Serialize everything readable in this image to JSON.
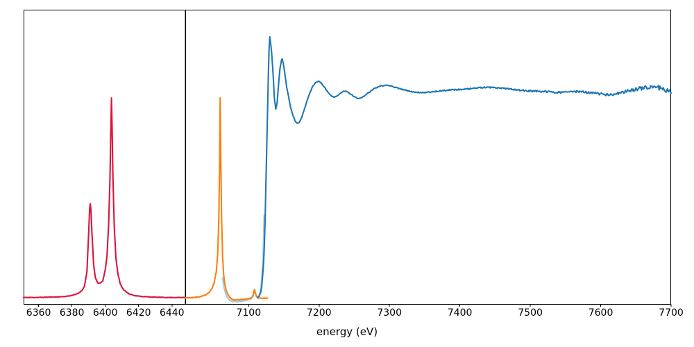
{
  "figure": {
    "background": "#ffffff",
    "border_color": "#000000"
  },
  "chart_data": {
    "type": "line",
    "title": "",
    "xlabel": "energy (eV)",
    "ylabel": "",
    "grid": false,
    "legend": "none",
    "ylim": [
      0,
      1
    ],
    "panels": [
      {
        "name": "left-emission-panel",
        "xlim": [
          6351,
          6448
        ],
        "xticks": [
          {
            "value": 6360,
            "label": "6360"
          },
          {
            "value": 6380,
            "label": "6380"
          },
          {
            "value": 6400,
            "label": "6400"
          },
          {
            "value": 6420,
            "label": "6420"
          },
          {
            "value": 6440,
            "label": "6440"
          }
        ]
      },
      {
        "name": "right-xafs-panel",
        "xlim": [
          7010,
          7700
        ],
        "xticks": [
          {
            "value": 7100,
            "label": "7100"
          },
          {
            "value": 7200,
            "label": "7200"
          },
          {
            "value": 7300,
            "label": "7300"
          },
          {
            "value": 7400,
            "label": "7400"
          },
          {
            "value": 7500,
            "label": "7500"
          },
          {
            "value": 7600,
            "label": "7600"
          },
          {
            "value": 7700,
            "label": "7700"
          }
        ]
      }
    ],
    "series": [
      {
        "name": "curve-crimson-kalpha",
        "panel": 0,
        "color": "#dc143c",
        "line_width": 2.1,
        "step": 0.4,
        "noise": 0.0008,
        "noise_seed": 11,
        "points": [
          [
            6351,
            0.022
          ],
          [
            6358,
            0.022
          ],
          [
            6365,
            0.023
          ],
          [
            6371,
            0.024
          ],
          [
            6375,
            0.025
          ],
          [
            6379,
            0.028
          ],
          [
            6382,
            0.032
          ],
          [
            6384,
            0.037
          ],
          [
            6386,
            0.046
          ],
          [
            6387.5,
            0.06
          ],
          [
            6389,
            0.11
          ],
          [
            6390,
            0.235
          ],
          [
            6390.6,
            0.32
          ],
          [
            6391,
            0.341
          ],
          [
            6391.4,
            0.32
          ],
          [
            6392,
            0.24
          ],
          [
            6393,
            0.135
          ],
          [
            6394,
            0.09
          ],
          [
            6395.5,
            0.071
          ],
          [
            6397,
            0.071
          ],
          [
            6398.5,
            0.078
          ],
          [
            6400,
            0.117
          ],
          [
            6401,
            0.16
          ],
          [
            6402,
            0.27
          ],
          [
            6402.8,
            0.42
          ],
          [
            6403.3,
            0.58
          ],
          [
            6403.7,
            0.7
          ],
          [
            6404.1,
            0.6
          ],
          [
            6404.6,
            0.43
          ],
          [
            6405.4,
            0.26
          ],
          [
            6406.4,
            0.155
          ],
          [
            6407.5,
            0.105
          ],
          [
            6409,
            0.068
          ],
          [
            6411,
            0.048
          ],
          [
            6414,
            0.035
          ],
          [
            6418,
            0.028
          ],
          [
            6423,
            0.025
          ],
          [
            6430,
            0.023
          ],
          [
            6438,
            0.022
          ],
          [
            6448,
            0.022
          ]
        ]
      },
      {
        "name": "curve-lightblue-underlay",
        "panel": 1,
        "color": "#a6cee3",
        "line_width": 2.2,
        "step": 0.6,
        "noise": 0.0018,
        "noise_seed": 23,
        "points": [
          [
            7063,
            0.09
          ],
          [
            7065,
            0.055
          ],
          [
            7067,
            0.037
          ],
          [
            7070,
            0.022
          ],
          [
            7073,
            0.013
          ],
          [
            7077,
            0.009
          ],
          [
            7082,
            0.007
          ],
          [
            7087,
            0.008
          ],
          [
            7092,
            0.011
          ],
          [
            7097,
            0.013
          ],
          [
            7101,
            0.016
          ],
          [
            7104,
            0.019
          ],
          [
            7106.5,
            0.03
          ],
          [
            7108,
            0.046
          ],
          [
            7109.5,
            0.037
          ],
          [
            7111,
            0.026
          ],
          [
            7113,
            0.022
          ],
          [
            7115,
            0.028
          ],
          [
            7117,
            0.048
          ],
          [
            7118.5,
            0.08
          ],
          [
            7120,
            0.14
          ],
          [
            7121,
            0.21
          ],
          [
            7122,
            0.3
          ]
        ]
      },
      {
        "name": "curve-orange-kbeta",
        "panel": 1,
        "color": "#ff7f0e",
        "line_width": 2.1,
        "step": 0.5,
        "noise": 0.0009,
        "noise_seed": 7,
        "points": [
          [
            7010,
            0.021
          ],
          [
            7018,
            0.021
          ],
          [
            7026,
            0.023
          ],
          [
            7033,
            0.026
          ],
          [
            7039,
            0.031
          ],
          [
            7044,
            0.039
          ],
          [
            7048,
            0.053
          ],
          [
            7051,
            0.072
          ],
          [
            7054,
            0.11
          ],
          [
            7056,
            0.17
          ],
          [
            7057.5,
            0.28
          ],
          [
            7058.6,
            0.45
          ],
          [
            7059.5,
            0.7
          ],
          [
            7060.4,
            0.5
          ],
          [
            7061.5,
            0.3
          ],
          [
            7063,
            0.16
          ],
          [
            7064.5,
            0.1
          ],
          [
            7066,
            0.068
          ],
          [
            7068,
            0.046
          ],
          [
            7070.5,
            0.032
          ],
          [
            7073,
            0.023
          ],
          [
            7076,
            0.017
          ],
          [
            7080,
            0.014
          ],
          [
            7085,
            0.014
          ],
          [
            7090,
            0.015
          ],
          [
            7095,
            0.016
          ],
          [
            7100,
            0.018
          ],
          [
            7103,
            0.02
          ],
          [
            7105.5,
            0.024
          ],
          [
            7107.5,
            0.044
          ],
          [
            7108.5,
            0.048
          ],
          [
            7110,
            0.034
          ],
          [
            7111.5,
            0.024
          ],
          [
            7113.5,
            0.02
          ],
          [
            7116,
            0.02
          ],
          [
            7119,
            0.019
          ],
          [
            7122,
            0.02
          ],
          [
            7125,
            0.019
          ],
          [
            7127,
            0.02
          ]
        ]
      },
      {
        "name": "curve-blue-xafs",
        "panel": 1,
        "color": "#1f77b4",
        "line_width": 2.1,
        "step": 1.0,
        "noise_profile": [
          [
            7113,
            0.0008
          ],
          [
            7200,
            0.0012
          ],
          [
            7350,
            0.0018
          ],
          [
            7550,
            0.0028
          ],
          [
            7620,
            0.0045
          ],
          [
            7700,
            0.0085
          ]
        ],
        "noise_seed": 37,
        "points": [
          [
            7113,
            0.022
          ],
          [
            7115,
            0.027
          ],
          [
            7117,
            0.038
          ],
          [
            7118.5,
            0.06
          ],
          [
            7120,
            0.1
          ],
          [
            7121.3,
            0.145
          ],
          [
            7122.3,
            0.2
          ],
          [
            7123.5,
            0.3
          ],
          [
            7125,
            0.46
          ],
          [
            7126.5,
            0.62
          ],
          [
            7128,
            0.78
          ],
          [
            7129,
            0.868
          ],
          [
            7130,
            0.908
          ],
          [
            7131,
            0.89
          ],
          [
            7132.5,
            0.858
          ],
          [
            7134.5,
            0.79
          ],
          [
            7136.5,
            0.7
          ],
          [
            7138.5,
            0.661
          ],
          [
            7140.5,
            0.685
          ],
          [
            7142.5,
            0.748
          ],
          [
            7144.5,
            0.8
          ],
          [
            7146.5,
            0.828
          ],
          [
            7147.5,
            0.833
          ],
          [
            7149,
            0.82
          ],
          [
            7151,
            0.79
          ],
          [
            7154,
            0.737
          ],
          [
            7157,
            0.7
          ],
          [
            7160,
            0.664
          ],
          [
            7163,
            0.64
          ],
          [
            7166,
            0.622
          ],
          [
            7169,
            0.613
          ],
          [
            7172,
            0.618
          ],
          [
            7175,
            0.632
          ],
          [
            7179,
            0.66
          ],
          [
            7183,
            0.692
          ],
          [
            7187,
            0.718
          ],
          [
            7191,
            0.74
          ],
          [
            7195,
            0.753
          ],
          [
            7199,
            0.757
          ],
          [
            7203,
            0.751
          ],
          [
            7208,
            0.736
          ],
          [
            7213,
            0.718
          ],
          [
            7218,
            0.706
          ],
          [
            7222,
            0.703
          ],
          [
            7227,
            0.71
          ],
          [
            7232,
            0.72
          ],
          [
            7236,
            0.724
          ],
          [
            7240,
            0.722
          ],
          [
            7245,
            0.713
          ],
          [
            7250,
            0.704
          ],
          [
            7255,
            0.698
          ],
          [
            7260,
            0.7
          ],
          [
            7266,
            0.71
          ],
          [
            7273,
            0.723
          ],
          [
            7280,
            0.734
          ],
          [
            7288,
            0.741
          ],
          [
            7296,
            0.743
          ],
          [
            7304,
            0.74
          ],
          [
            7312,
            0.733
          ],
          [
            7320,
            0.728
          ],
          [
            7330,
            0.722
          ],
          [
            7340,
            0.719
          ],
          [
            7352,
            0.719
          ],
          [
            7364,
            0.722
          ],
          [
            7376,
            0.725
          ],
          [
            7388,
            0.728
          ],
          [
            7400,
            0.729
          ],
          [
            7412,
            0.731
          ],
          [
            7424,
            0.734
          ],
          [
            7436,
            0.736
          ],
          [
            7448,
            0.735
          ],
          [
            7460,
            0.733
          ],
          [
            7472,
            0.73
          ],
          [
            7484,
            0.727
          ],
          [
            7496,
            0.724
          ],
          [
            7508,
            0.723
          ],
          [
            7520,
            0.722
          ],
          [
            7532,
            0.72
          ],
          [
            7544,
            0.719
          ],
          [
            7556,
            0.721
          ],
          [
            7568,
            0.722
          ],
          [
            7580,
            0.719
          ],
          [
            7592,
            0.716
          ],
          [
            7604,
            0.713
          ],
          [
            7612,
            0.71
          ],
          [
            7620,
            0.712
          ],
          [
            7628,
            0.717
          ],
          [
            7636,
            0.722
          ],
          [
            7644,
            0.727
          ],
          [
            7652,
            0.731
          ],
          [
            7660,
            0.734
          ],
          [
            7668,
            0.738
          ],
          [
            7676,
            0.736
          ],
          [
            7684,
            0.734
          ],
          [
            7690,
            0.729
          ],
          [
            7695,
            0.727
          ],
          [
            7700,
            0.719
          ]
        ]
      }
    ]
  }
}
